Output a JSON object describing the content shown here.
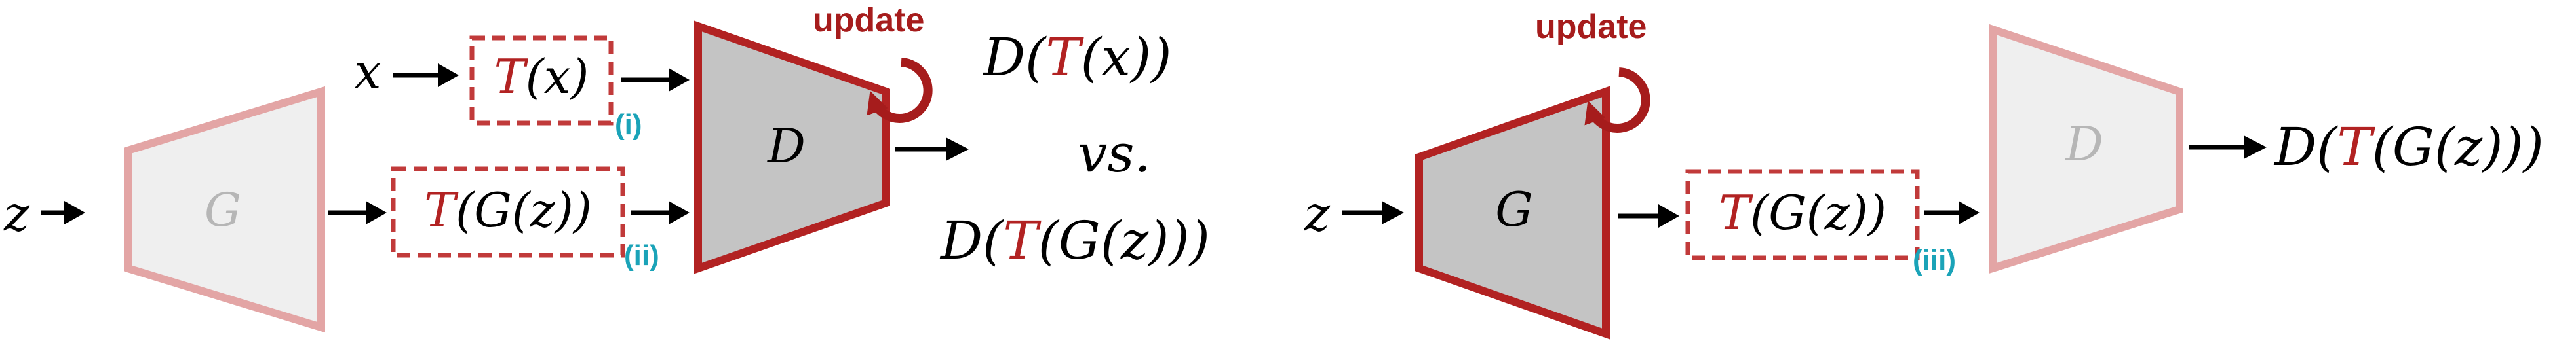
{
  "colors": {
    "accent_red": "#b22222",
    "update_red": "#a61c1c",
    "tag_teal": "#1aa3b8",
    "frozen_fill": "#efefef",
    "frozen_stroke": "#e3a5a5",
    "frozen_text": "#b6b6b6",
    "active_fill": "#c4c4c4",
    "arrow": "#000000"
  },
  "left_panel": {
    "inputs": {
      "x": "x",
      "z": "z"
    },
    "generator": {
      "label": "G",
      "state": "frozen"
    },
    "discriminator": {
      "label": "D",
      "state": "updated"
    },
    "transform_real": {
      "prefix": "T",
      "arg": "(x)"
    },
    "transform_fake": {
      "prefix": "T",
      "arg": "(G(z))"
    },
    "tags": {
      "real": "(i)",
      "fake": "(ii)"
    },
    "update_label": "update",
    "output": {
      "real": {
        "open": "D(",
        "t": "T",
        "close": "(x))"
      },
      "vs": "vs.",
      "fake": {
        "open": "D(",
        "t": "T",
        "close": "(G(z)))"
      }
    }
  },
  "right_panel": {
    "input_z": "z",
    "generator": {
      "label": "G",
      "state": "updated"
    },
    "discriminator": {
      "label": "D",
      "state": "frozen"
    },
    "transform": {
      "prefix": "T",
      "arg": "(G(z))"
    },
    "tag": "(iii)",
    "update_label": "update",
    "output": {
      "open": "D(",
      "t": "T",
      "close": "(G(z)))"
    }
  }
}
